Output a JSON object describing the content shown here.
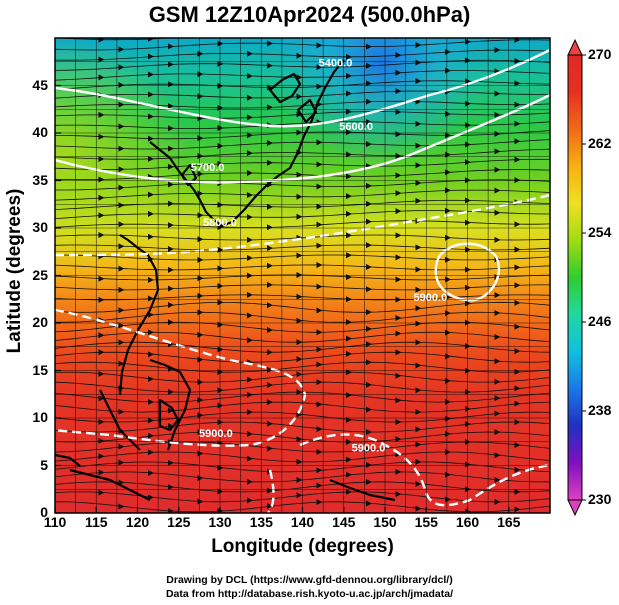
{
  "title": "GSM 12Z10Apr2024 (500.0hPa)",
  "xlabel": "Longitude (degrees)",
  "ylabel": "Latitude  (degrees)",
  "credits": {
    "line1": "Drawing by DCL (https://www.gfd-dennou.org/library/dcl/)",
    "line2": "Data from http://database.rish.kyoto-u.ac.jp/arch/jmadata/"
  },
  "map": {
    "lon_range": [
      110,
      170
    ],
    "lat_range": [
      0,
      50
    ],
    "lon_ticks": [
      "110",
      "115",
      "120",
      "125",
      "130",
      "135",
      "140",
      "145",
      "150",
      "155",
      "160",
      "165"
    ],
    "lat_ticks": [
      "0",
      "5",
      "10",
      "15",
      "20",
      "25",
      "30",
      "35",
      "40",
      "45"
    ],
    "grid": true,
    "contour_labels": [
      {
        "text": "5400.0",
        "lon": 144.0,
        "lat": 47.0
      },
      {
        "text": "5600.0",
        "lon": 146.5,
        "lat": 40.3
      },
      {
        "text": "5700.0",
        "lon": 128.5,
        "lat": 36.0
      },
      {
        "text": "5800.0",
        "lon": 130.0,
        "lat": 30.2
      },
      {
        "text": "5900.0",
        "lon": 155.5,
        "lat": 22.3
      },
      {
        "text": "5900.0",
        "lon": 148.0,
        "lat": 6.5
      },
      {
        "text": "5900.0",
        "lon": 129.5,
        "lat": 8.0
      }
    ]
  },
  "colorbar": {
    "labels": [
      "270",
      "262",
      "254",
      "246",
      "238",
      "230"
    ],
    "min": 230,
    "max": 270,
    "colors": [
      "#e040c0",
      "#8010c0",
      "#2030c0",
      "#1a78e8",
      "#10c0e0",
      "#20d8a0",
      "#30cc30",
      "#a0dc10",
      "#f0e020",
      "#f8b010",
      "#f06a18",
      "#e83020",
      "#e02828"
    ]
  }
}
